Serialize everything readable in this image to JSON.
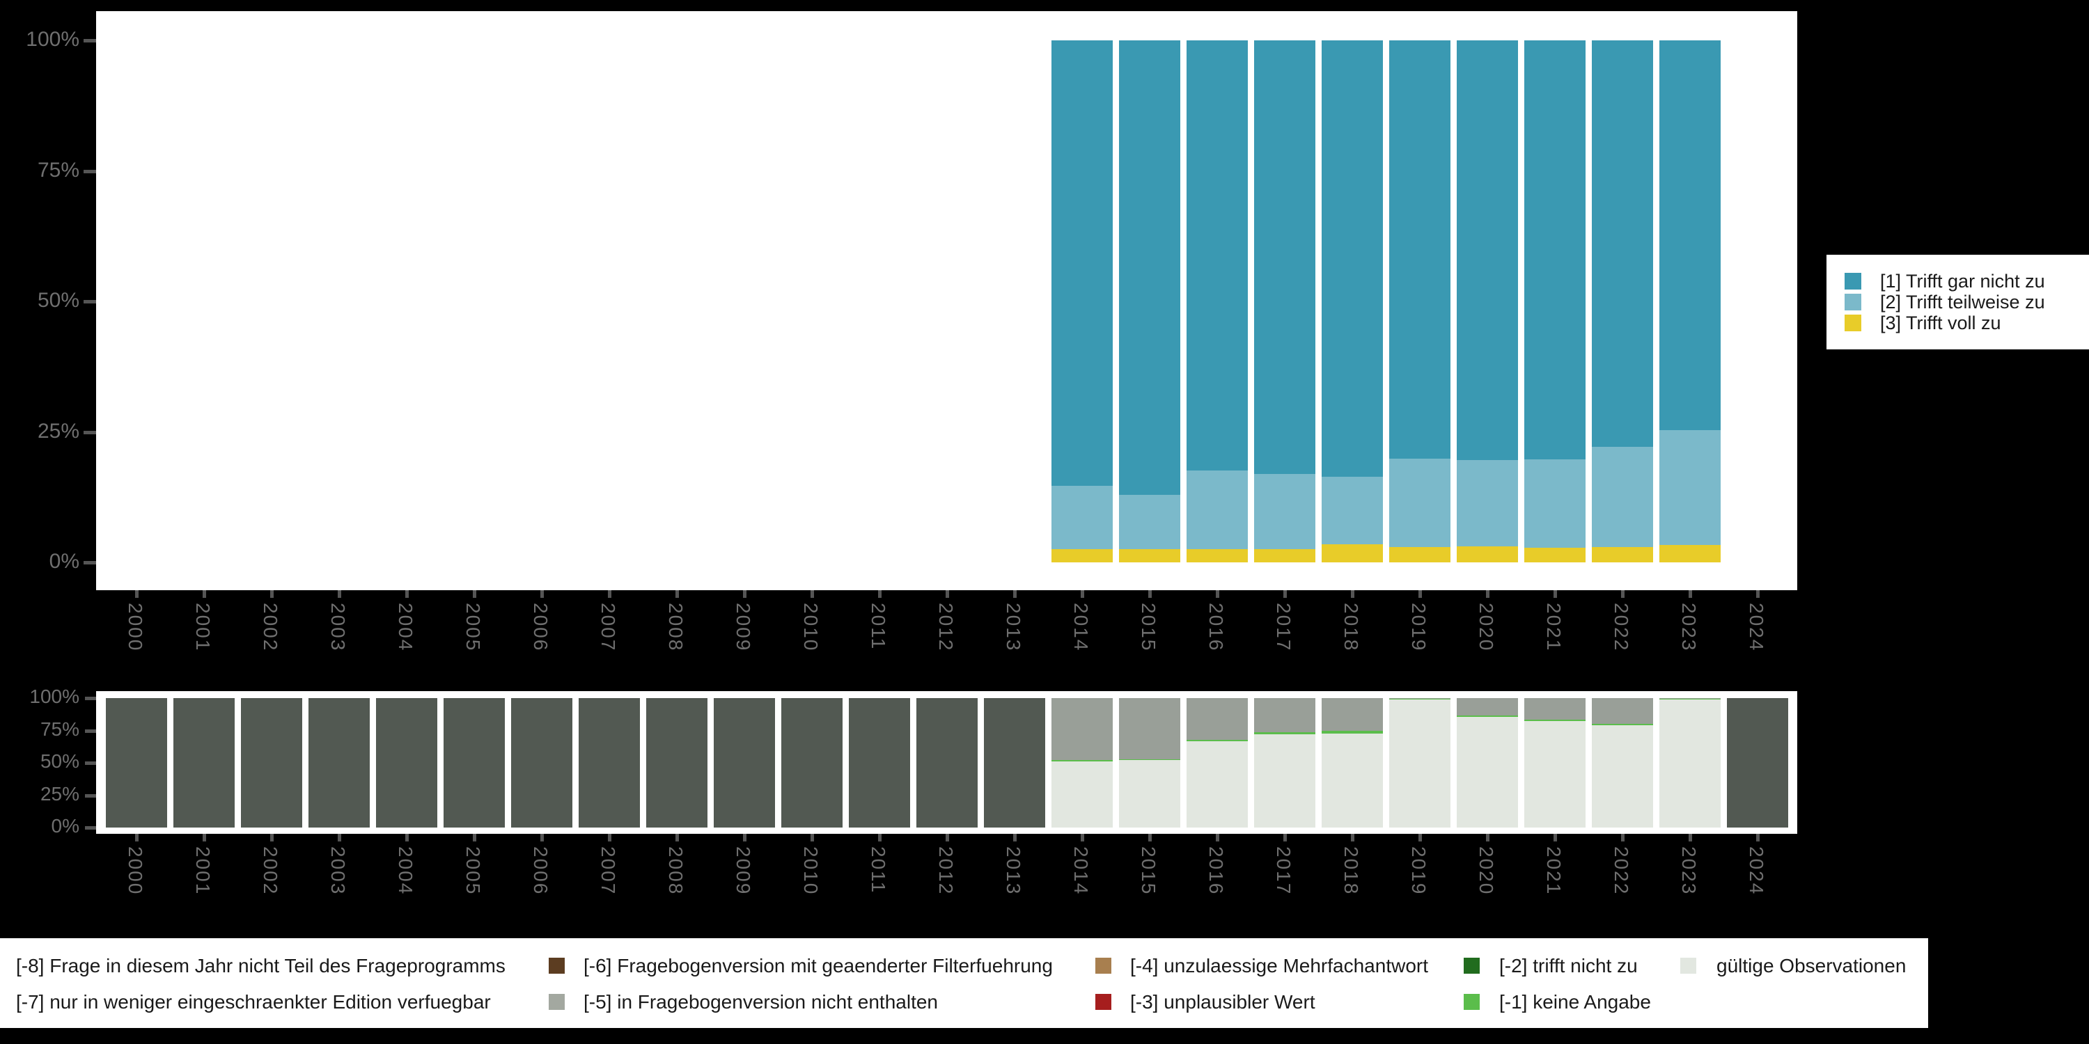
{
  "colors": {
    "background": "#000000",
    "panel": "#FFFFFF",
    "axis_text": "#6F6F6F",
    "tick_mark": "#555555",
    "legend_text": "#1A1A1A"
  },
  "chart_data": [
    {
      "id": "answers",
      "type": "bar",
      "stacked": true,
      "unit": "percent",
      "title": "",
      "xlabel": "",
      "ylabel": "",
      "ylim": [
        0,
        100
      ],
      "grid": false,
      "yticks": [
        "0%",
        "25%",
        "50%",
        "75%",
        "100%"
      ],
      "x": [
        "2000",
        "2001",
        "2002",
        "2003",
        "2004",
        "2005",
        "2006",
        "2007",
        "2008",
        "2009",
        "2010",
        "2011",
        "2012",
        "2013",
        "2014",
        "2015",
        "2016",
        "2017",
        "2018",
        "2019",
        "2020",
        "2021",
        "2022",
        "2023",
        "2024"
      ],
      "series": [
        {
          "name": "[3] Trifft voll zu",
          "color": "#E8CC29",
          "values": {
            "2014": 2.5,
            "2015": 2.5,
            "2016": 2.5,
            "2017": 2.5,
            "2018": 3.5,
            "2019": 2.9,
            "2020": 3.1,
            "2021": 2.8,
            "2022": 2.9,
            "2023": 3.3
          }
        },
        {
          "name": "[2] Trifft teilweise zu",
          "color": "#7BB9CA",
          "values": {
            "2014": 12.2,
            "2015": 10.4,
            "2016": 15.1,
            "2017": 14.4,
            "2018": 12.9,
            "2019": 17.0,
            "2020": 16.5,
            "2021": 17.0,
            "2022": 19.2,
            "2023": 22.1
          }
        },
        {
          "name": "[1] Trifft gar nicht zu",
          "color": "#3A99B2",
          "values": {
            "2014": 85.3,
            "2015": 87.1,
            "2016": 82.4,
            "2017": 83.1,
            "2018": 83.6,
            "2019": 80.1,
            "2020": 80.4,
            "2021": 80.2,
            "2022": 77.9,
            "2023": 74.6
          }
        }
      ],
      "legend_position": "right"
    },
    {
      "id": "missings",
      "type": "bar",
      "stacked": true,
      "unit": "percent",
      "title": "",
      "xlabel": "",
      "ylabel": "",
      "ylim": [
        0,
        100
      ],
      "grid": false,
      "yticks": [
        "0%",
        "25%",
        "50%",
        "75%",
        "100%"
      ],
      "x": [
        "2000",
        "2001",
        "2002",
        "2003",
        "2004",
        "2005",
        "2006",
        "2007",
        "2008",
        "2009",
        "2010",
        "2011",
        "2012",
        "2013",
        "2014",
        "2015",
        "2016",
        "2017",
        "2018",
        "2019",
        "2020",
        "2021",
        "2022",
        "2023",
        "2024"
      ],
      "series": [
        {
          "name": "gültige Observationen",
          "color": "#E2E7E0",
          "values": {
            "2014": 51.0,
            "2015": 51.9,
            "2016": 66.8,
            "2017": 72.2,
            "2018": 72.6,
            "2019": 98.9,
            "2020": 85.7,
            "2021": 82.2,
            "2022": 79.2,
            "2023": 99.0
          }
        },
        {
          "name": "[-1] keine Angabe",
          "color": "#5BBD4B",
          "values": {
            "2014": 1.3,
            "2015": 0.7,
            "2016": 1.2,
            "2017": 1.4,
            "2018": 1.9,
            "2019": 0.9,
            "2020": 1.1,
            "2021": 1.3,
            "2022": 1.1,
            "2023": 0.9
          }
        },
        {
          "name": "[-5] in Fragebogenversion nicht enthalten",
          "color": "#999F98",
          "values": {
            "2014": 47.7,
            "2015": 47.4,
            "2016": 32.0,
            "2017": 26.4,
            "2018": 25.5,
            "2019": 0.2,
            "2020": 13.2,
            "2021": 16.5,
            "2022": 19.7,
            "2023": 0.1
          }
        },
        {
          "name": "[-8] Frage in diesem Jahr nicht Teil des Frageprogramms",
          "color": "#525952",
          "values": {
            "2000": 100,
            "2001": 100,
            "2002": 100,
            "2003": 100,
            "2004": 100,
            "2005": 100,
            "2006": 100,
            "2007": 100,
            "2008": 100,
            "2009": 100,
            "2010": 100,
            "2011": 100,
            "2012": 100,
            "2013": 100,
            "2024": 100
          }
        }
      ],
      "legend_position": "bottom"
    }
  ],
  "top_legend": {
    "items": [
      {
        "label": "[1] Trifft gar nicht zu",
        "color": "#3A99B2"
      },
      {
        "label": "[2] Trifft teilweise zu",
        "color": "#7BB9CA"
      },
      {
        "label": "[3] Trifft voll zu",
        "color": "#E8CC29"
      }
    ]
  },
  "bottom_legend": {
    "entries": [
      {
        "label": "[-8] Frage in diesem Jahr nicht Teil des Frageprogramms",
        "color": null,
        "col": 0,
        "row": 0
      },
      {
        "label": "[-7] nur in weniger eingeschraenkter Edition verfuegbar",
        "color": null,
        "col": 0,
        "row": 1
      },
      {
        "label": "[-6] Fragebogenversion mit geaenderter Filterfuehrung",
        "color": "#5C3D21",
        "col": 1,
        "row": 0
      },
      {
        "label": "[-5] in Fragebogenversion nicht enthalten",
        "color": "#A3A8A0",
        "col": 1,
        "row": 1
      },
      {
        "label": "[-4] unzulaessige Mehrfachantwort",
        "color": "#A87F4F",
        "col": 2,
        "row": 0
      },
      {
        "label": "[-3] unplausibler Wert",
        "color": "#A61E1E",
        "col": 2,
        "row": 1
      },
      {
        "label": "[-2] trifft nicht zu",
        "color": "#216C1E",
        "col": 3,
        "row": 0
      },
      {
        "label": "[-1] keine Angabe",
        "color": "#5BBD4B",
        "col": 3,
        "row": 1
      },
      {
        "label": "gültige Observationen",
        "color": "#E2E7E0",
        "col": 4,
        "row": 0
      }
    ]
  }
}
